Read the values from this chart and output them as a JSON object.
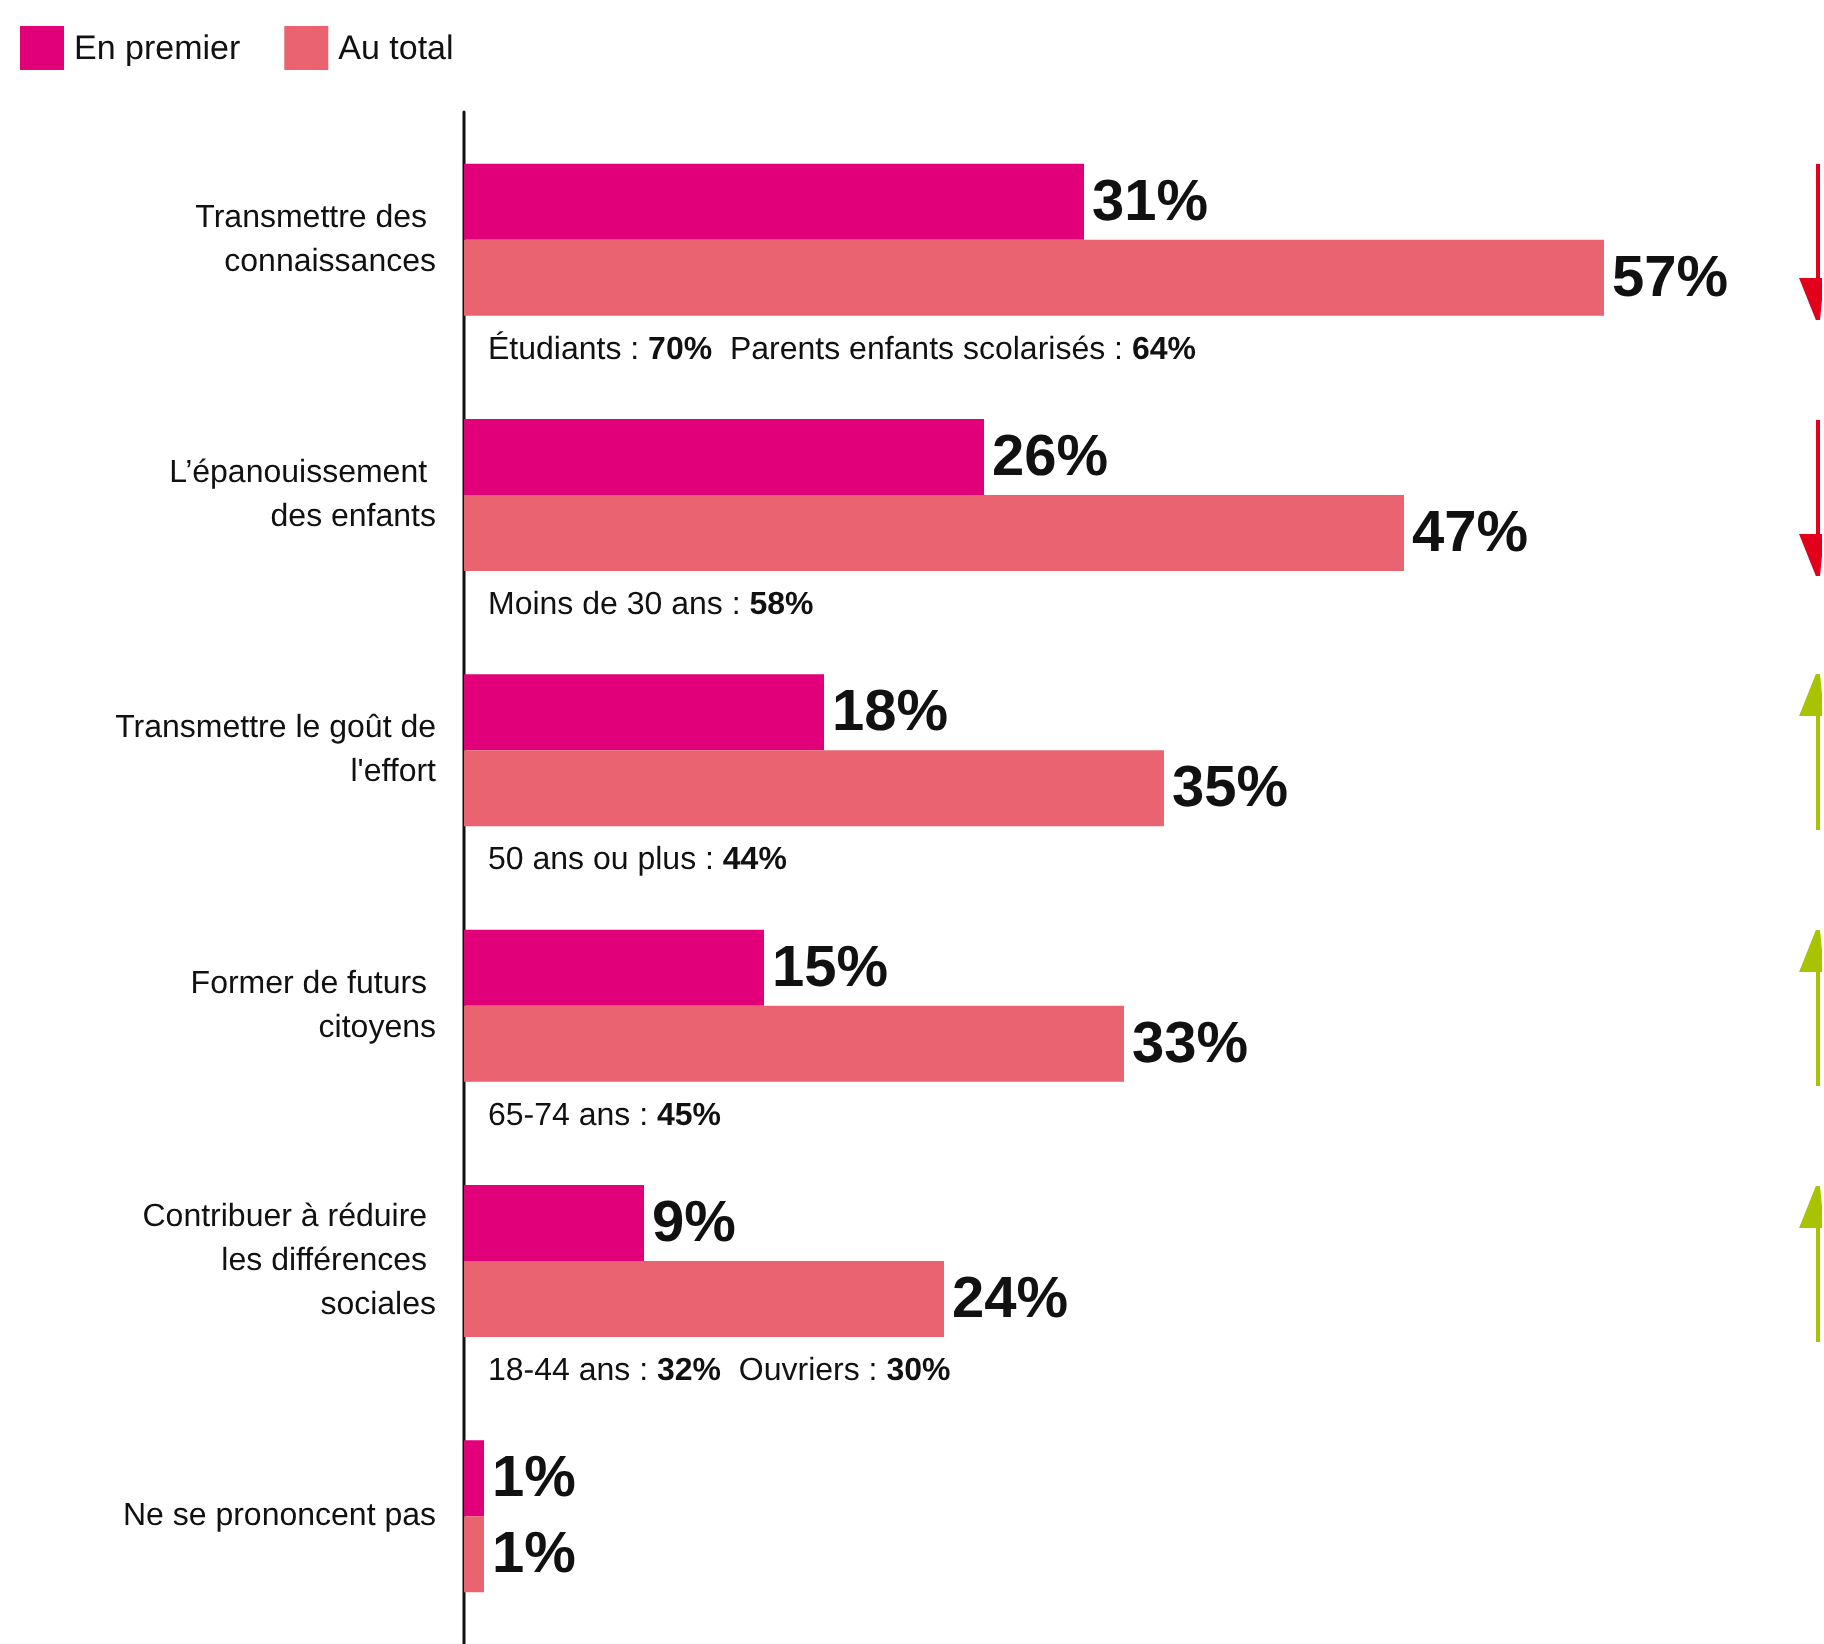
{
  "chart_data": {
    "type": "bar",
    "orientation": "horizontal",
    "legend": "top left",
    "categories": [
      "Transmettre des connaissances",
      "L’épanouissement des enfants",
      "Transmettre le goût de l'effort",
      "Former de futurs citoyens",
      "Contribuer à réduire les différences sociales",
      "Ne se prononcent pas"
    ],
    "series": [
      {
        "name": "En premier",
        "color": "#e2007a",
        "values": [
          31,
          26,
          18,
          15,
          9,
          1
        ],
        "value_labels": [
          "31%",
          "26%",
          "18%",
          "15%",
          "9%",
          "1%"
        ]
      },
      {
        "name": "Au total",
        "color": "#e96370",
        "values": [
          57,
          47,
          35,
          33,
          24,
          1
        ],
        "value_labels": [
          "57%",
          "47%",
          "35%",
          "33%",
          "24%",
          "1%"
        ]
      }
    ],
    "annotations": [
      "Étudiants : 70%  Parents enfants scolarisés : 64%",
      "Moins de 30 ans : 58%",
      "50 ans ou plus : 44%",
      "65-74 ans : 45%",
      "18-44 ans : 32%  Ouvriers : 30%"
    ]
  }
}
